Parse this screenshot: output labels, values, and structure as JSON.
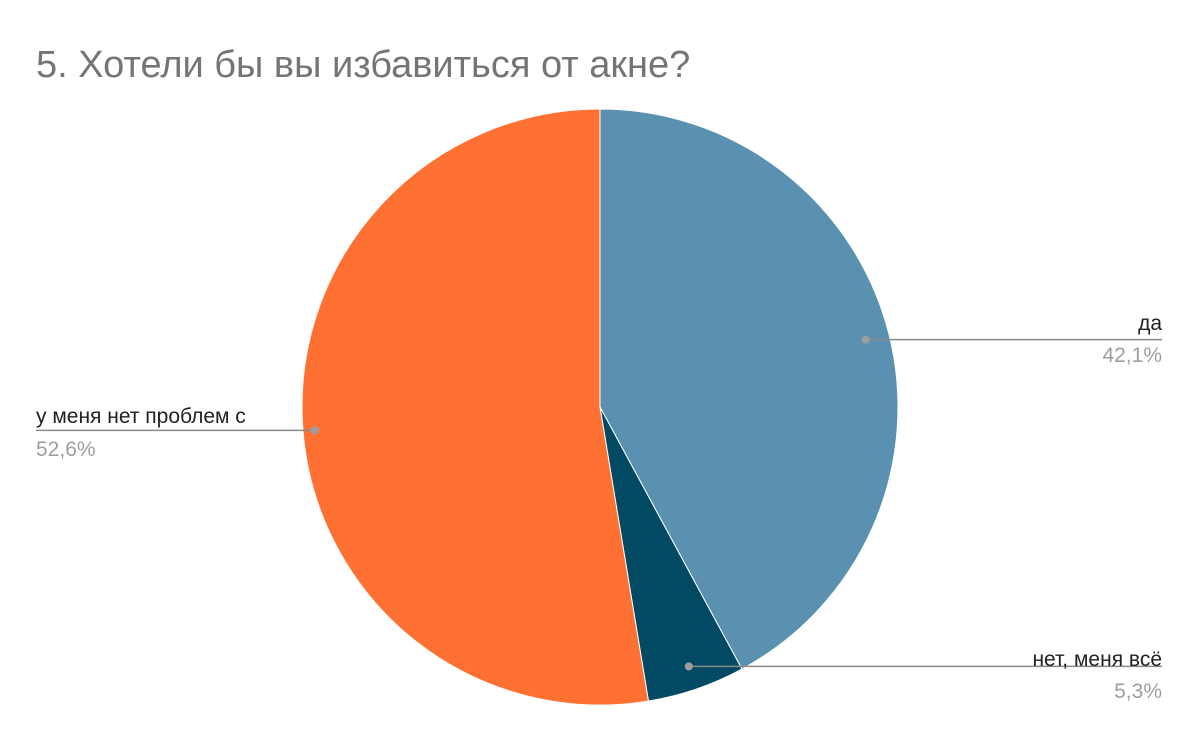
{
  "chart_data": {
    "type": "pie",
    "title": "5. Хотели бы вы избавиться от акне?",
    "slices": [
      {
        "label": "да",
        "value": 42.1,
        "value_label": "42,1%",
        "color": "#5a91b0"
      },
      {
        "label": "нет, меня всё",
        "value": 5.3,
        "value_label": "5,3%",
        "color": "#024a64"
      },
      {
        "label": "у меня нет проблем с",
        "value": 52.6,
        "value_label": "52,6%",
        "color": "#ff7033"
      }
    ],
    "start_angle": "12 o'clock",
    "direction": "clockwise"
  }
}
